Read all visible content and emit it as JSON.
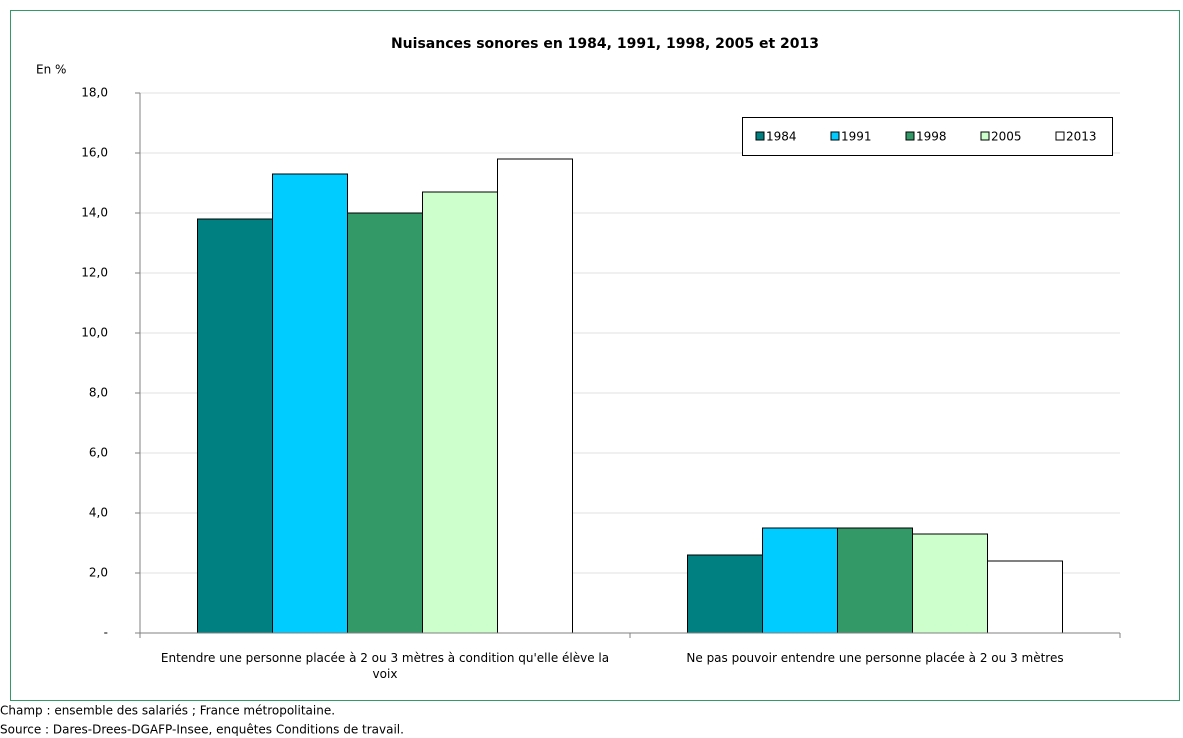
{
  "chart_data": {
    "type": "bar",
    "title": "Nuisances sonores en 1984, 1991, 1998, 2005 et 2013",
    "y_label": "En %",
    "categories": [
      "Entendre une personne placée à 2 ou 3 mètres à condition qu'elle élève la voix",
      "Ne pas pouvoir entendre une personne placée à 2 ou 3 mètres"
    ],
    "series": [
      {
        "name": "1984",
        "color": "#008080",
        "values": [
          13.8,
          2.6
        ]
      },
      {
        "name": "1991",
        "color": "#00ccff",
        "values": [
          15.3,
          3.5
        ]
      },
      {
        "name": "1998",
        "color": "#339966",
        "values": [
          14.0,
          3.5
        ]
      },
      {
        "name": "2005",
        "color": "#ccffcc",
        "values": [
          14.7,
          3.3
        ]
      },
      {
        "name": "2013",
        "color": "#ffffff",
        "values": [
          15.8,
          2.4
        ]
      }
    ],
    "ylim": [
      0,
      18
    ],
    "yticks": [
      {
        "value": 0,
        "label": "-"
      },
      {
        "value": 2,
        "label": "2,0"
      },
      {
        "value": 4,
        "label": "4,0"
      },
      {
        "value": 6,
        "label": "6,0"
      },
      {
        "value": 8,
        "label": "8,0"
      },
      {
        "value": 10,
        "label": "10,0"
      },
      {
        "value": 12,
        "label": "12,0"
      },
      {
        "value": 14,
        "label": "14,0"
      },
      {
        "value": 16,
        "label": "16,0"
      },
      {
        "value": 18,
        "label": "18,0"
      }
    ],
    "grid": true,
    "legend_position": "top-right",
    "notes": [
      "Champ : ensemble des salariés ; France métropolitaine.",
      "Source : Dares-Drees-DGAFP-Insee, enquêtes Conditions de travail."
    ]
  }
}
